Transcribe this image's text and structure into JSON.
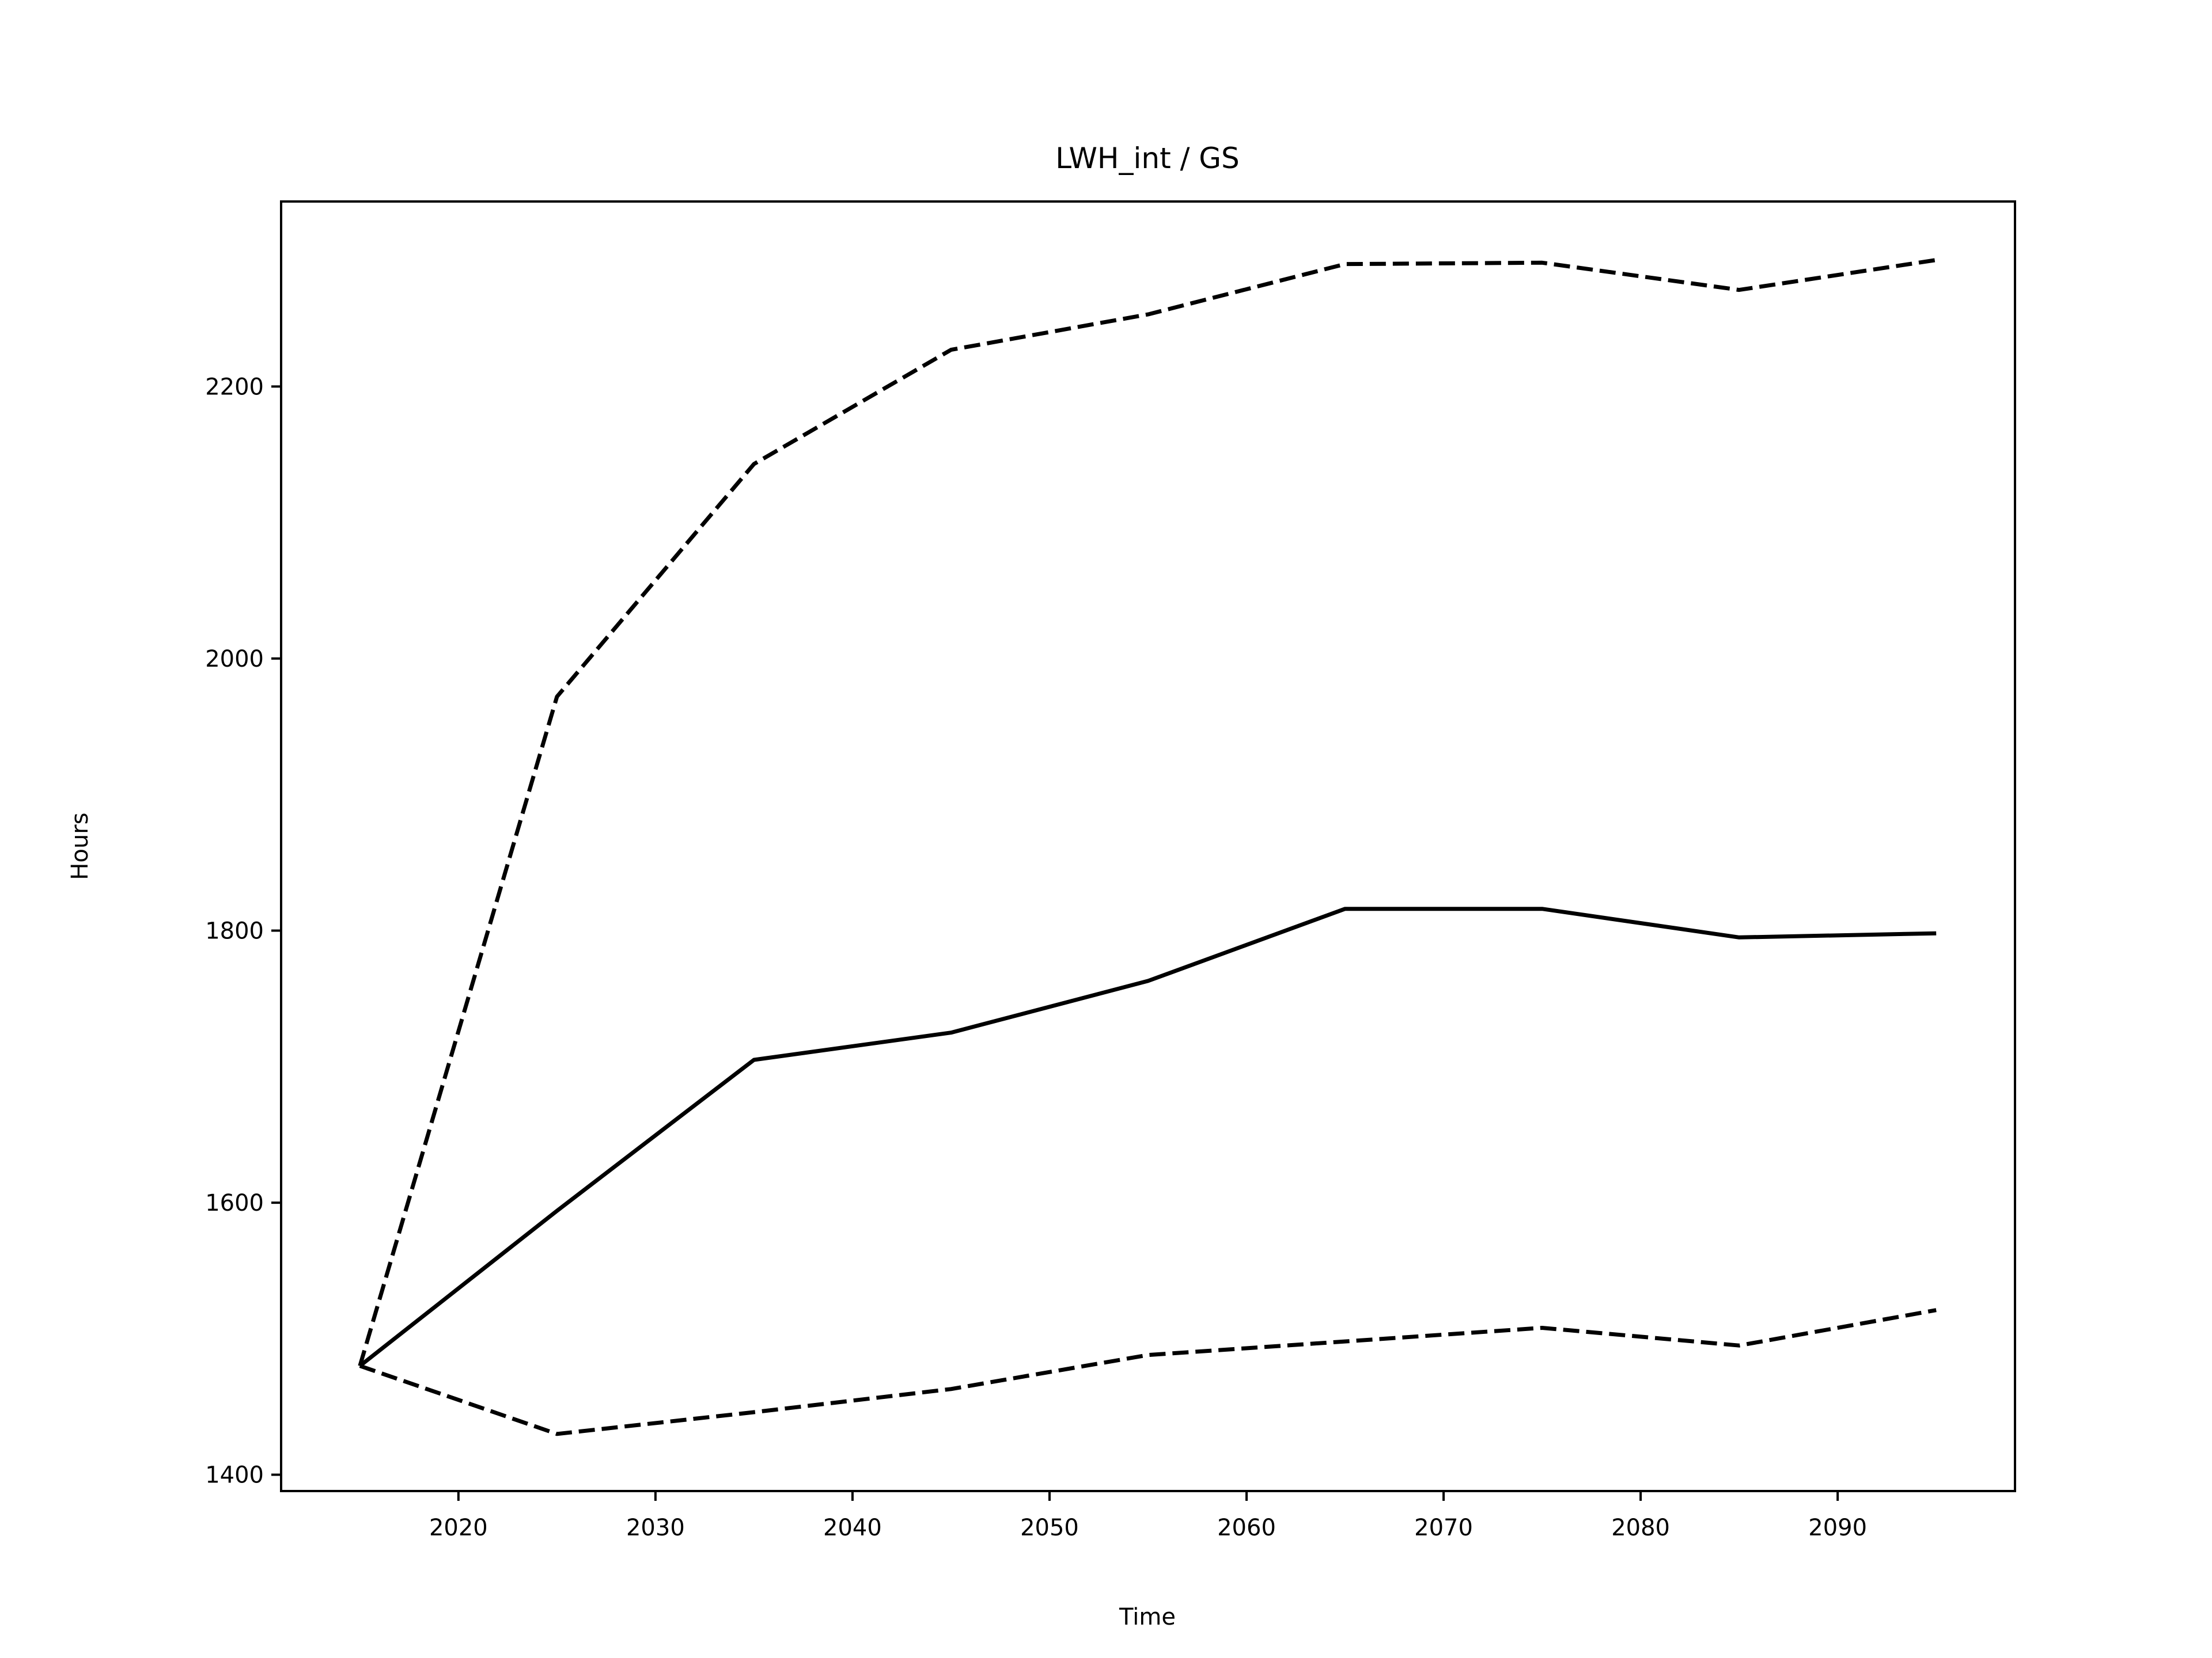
{
  "chart_data": {
    "type": "line",
    "title": "LWH_int / GS",
    "xlabel": "Time",
    "ylabel": "Hours",
    "xlim": [
      2011,
      2099
    ],
    "ylim": [
      1388,
      2336
    ],
    "x_ticks": [
      2020,
      2030,
      2040,
      2050,
      2060,
      2070,
      2080,
      2090
    ],
    "y_ticks": [
      1400,
      1600,
      1800,
      2000,
      2200
    ],
    "grid": false,
    "x": [
      2015,
      2025,
      2035,
      2045,
      2055,
      2065,
      2075,
      2085,
      2095
    ],
    "series": [
      {
        "style": "dashed",
        "color": "#000000",
        "values": [
          1480,
          1972,
          2143,
          2227,
          2253,
          2290,
          2291,
          2271,
          2293
        ]
      },
      {
        "style": "solid",
        "color": "#000000",
        "values": [
          1480,
          1594,
          1705,
          1725,
          1763,
          1816,
          1816,
          1795,
          1798
        ]
      },
      {
        "style": "dashed",
        "color": "#000000",
        "values": [
          1480,
          1430,
          1446,
          1463,
          1488,
          1498,
          1508,
          1495,
          1521
        ]
      }
    ]
  }
}
